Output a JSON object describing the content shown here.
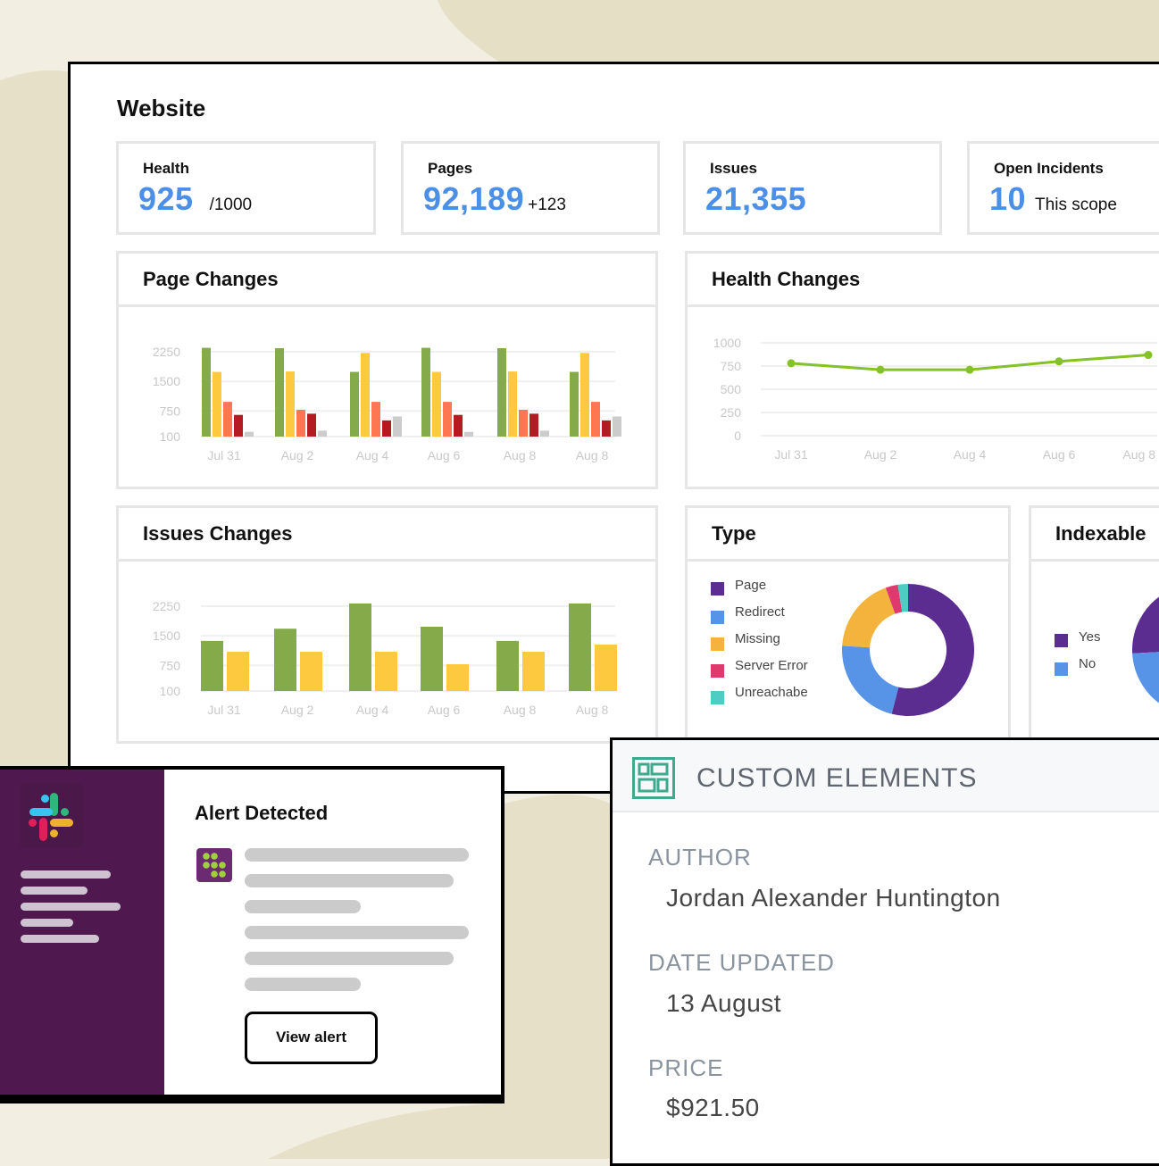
{
  "dashboard": {
    "title": "Website",
    "stats": [
      {
        "title": "Health",
        "value": "925",
        "sub": "/1000"
      },
      {
        "title": "Pages",
        "value": "92,189",
        "sub": "+123"
      },
      {
        "title": "Issues",
        "value": "21,355",
        "sub": ""
      },
      {
        "title": "Open Incidents",
        "value": "10",
        "sub": "This scope"
      }
    ],
    "cards": {
      "page_changes": "Page Changes",
      "health_changes": "Health Changes",
      "issues_changes": "Issues Changes",
      "type": "Type",
      "indexable": "Indexable"
    }
  },
  "colors": {
    "accent": "#4b8fe6",
    "slack_purple": "#4f184f",
    "green": "#84aa4a",
    "yellow": "#fdc93f",
    "orange": "#fe7751",
    "red": "#b31c23",
    "gray": "#cccccc"
  },
  "chart_data": [
    {
      "id": "page_changes",
      "type": "bar",
      "title": "Page Changes",
      "categories": [
        "Jul 31",
        "Aug 2",
        "Aug 4",
        "Aug 6",
        "Aug 8",
        "Aug 8"
      ],
      "yticks": [
        "2250",
        "1500",
        "750",
        "100"
      ],
      "ylim": [
        100,
        2250
      ],
      "series": [
        {
          "name": "s1",
          "color": "#84aa4a",
          "values": [
            2350,
            2340,
            1740,
            2350,
            2340,
            1740
          ]
        },
        {
          "name": "s2",
          "color": "#fdc93f",
          "values": [
            1740,
            1750,
            2220,
            1740,
            1750,
            2220
          ]
        },
        {
          "name": "s3",
          "color": "#fe7751",
          "values": [
            980,
            780,
            980,
            980,
            780,
            980
          ]
        },
        {
          "name": "s4",
          "color": "#b31c23",
          "values": [
            650,
            680,
            510,
            650,
            680,
            510
          ]
        },
        {
          "name": "s5",
          "color": "#cccccc",
          "values": [
            220,
            250,
            610,
            220,
            250,
            610
          ]
        }
      ]
    },
    {
      "id": "health_changes",
      "type": "line",
      "title": "Health Changes",
      "categories": [
        "Jul 31",
        "Aug 2",
        "Aug 4",
        "Aug 6",
        "Aug 8"
      ],
      "yticks": [
        "1000",
        "750",
        "500",
        "250",
        "0"
      ],
      "ylim": [
        0,
        1000
      ],
      "series": [
        {
          "name": "Health",
          "color": "#84c225",
          "values": [
            780,
            710,
            710,
            800,
            870
          ]
        }
      ]
    },
    {
      "id": "issues_changes",
      "type": "bar",
      "title": "Issues Changes",
      "categories": [
        "Jul 31",
        "Aug 2",
        "Aug 4",
        "Aug 6",
        "Aug 8",
        "Aug 8"
      ],
      "yticks": [
        "2250",
        "1500",
        "750",
        "100"
      ],
      "ylim": [
        100,
        2250
      ],
      "series": [
        {
          "name": "s1",
          "color": "#84aa4a",
          "values": [
            1370,
            1680,
            2320,
            1730,
            1370,
            2320
          ]
        },
        {
          "name": "s2",
          "color": "#fdc93f",
          "values": [
            1095,
            1095,
            1095,
            780,
            1095,
            1280
          ]
        }
      ]
    },
    {
      "id": "type",
      "type": "pie",
      "title": "Type",
      "labels": [
        "Page",
        "Redirect",
        "Missing",
        "Server Error",
        "Unreachabe"
      ],
      "colors": [
        "#5c2d91",
        "#5793e7",
        "#f3b33d",
        "#de3a6e",
        "#4ecdc4"
      ],
      "values": [
        54,
        22,
        18.5,
        3,
        2.5
      ]
    },
    {
      "id": "indexable",
      "type": "pie",
      "title": "Indexable",
      "labels": [
        "Yes",
        "No"
      ],
      "colors": [
        "#5c2d91",
        "#5793e7"
      ],
      "values": [
        80,
        20
      ]
    }
  ],
  "slack": {
    "title": "Alert Detected",
    "button": "View alert"
  },
  "custom_elements": {
    "title": "CUSTOM ELEMENTS",
    "fields": [
      {
        "label": "AUTHOR",
        "value": "Jordan Alexander Huntington"
      },
      {
        "label": "DATE UPDATED",
        "value": "13 August"
      },
      {
        "label": "PRICE",
        "value": "$921.50"
      }
    ]
  }
}
